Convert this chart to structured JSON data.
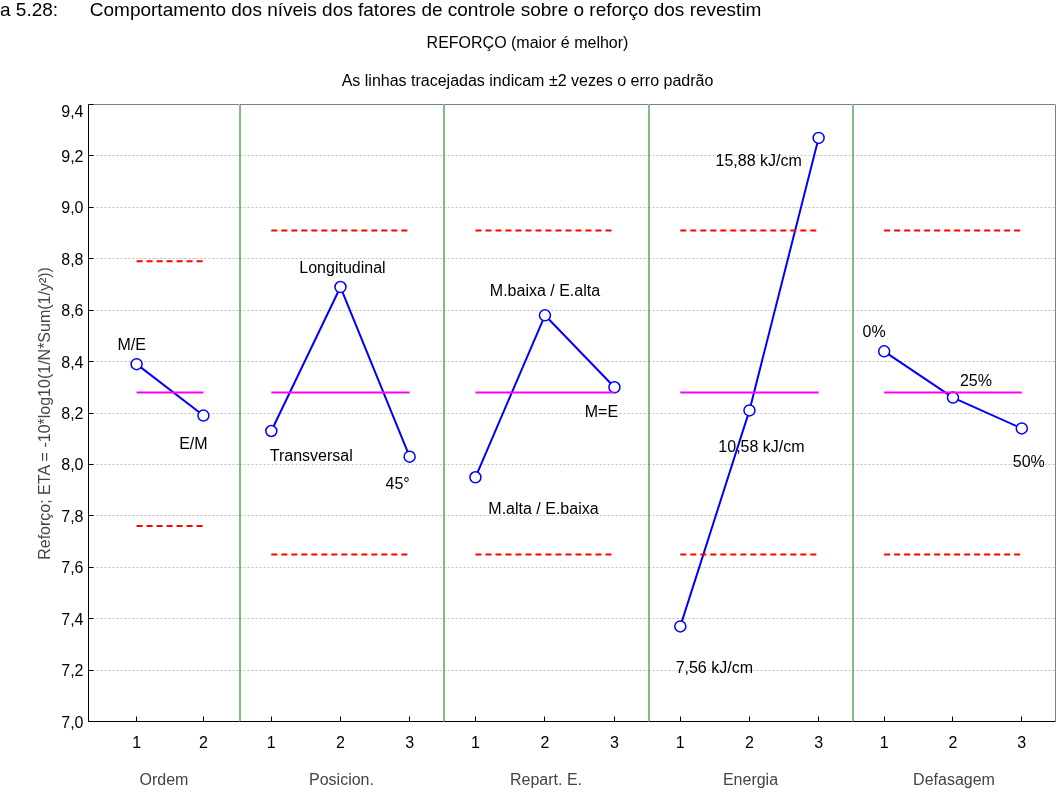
{
  "chart_data": [
    {
      "type": "line",
      "ylabel": "Reforço; ETA = -10*log10(1/N*Sum(1/y²))",
      "xlabel": "Ordem",
      "xlim": [
        0.28,
        2.54
      ],
      "xticks": [
        1,
        2
      ],
      "ylim": [
        7.0,
        9.4
      ],
      "yticks": [
        {
          "value": 7.0,
          "label": "7,0"
        },
        {
          "value": 7.2,
          "label": "7,2"
        },
        {
          "value": 7.4,
          "label": "7,4"
        },
        {
          "value": 7.6,
          "label": "7,6"
        },
        {
          "value": 7.8,
          "label": "7,8"
        },
        {
          "value": 8.0,
          "label": "8,0"
        },
        {
          "value": 8.2,
          "label": "8,2"
        },
        {
          "value": 8.4,
          "label": "8,4"
        },
        {
          "value": 8.6,
          "label": "8,6"
        },
        {
          "value": 8.8,
          "label": "8,8"
        },
        {
          "value": 9.0,
          "label": "9,0"
        },
        {
          "value": 9.2,
          "label": "9,2"
        },
        {
          "value": 9.4,
          "label": "9,4"
        }
      ],
      "grid": "y",
      "series": [
        {
          "color": "#0000ff",
          "marker": "circle",
          "line_style": "solid",
          "x": [
            1,
            2
          ],
          "values": [
            8.39,
            8.19
          ]
        },
        {
          "color": "#ff00ff",
          "marker": "none",
          "line_style": "solid",
          "x": [
            1,
            2
          ],
          "values": [
            8.28,
            8.28
          ]
        },
        {
          "color": "#ff0000",
          "marker": "none",
          "line_style": "dashed",
          "x": [
            1,
            2
          ],
          "values": [
            8.79,
            8.79
          ]
        },
        {
          "color": "#ff0000",
          "marker": "none",
          "line_style": "dashed",
          "x": [
            1,
            2
          ],
          "values": [
            7.76,
            7.76
          ]
        }
      ],
      "annotations": [
        {
          "text": "M/E",
          "x": 1,
          "y": 8.39
        },
        {
          "text": "E/M",
          "x": 2,
          "y": 8.19
        }
      ]
    },
    {
      "type": "line",
      "xlabel": "Posicion.",
      "tick_labels": "x",
      "xlim": [
        0.54,
        3.49
      ],
      "xticks": [
        1,
        2,
        3
      ],
      "ylim": [
        7.0,
        9.4
      ],
      "yticks": [
        7.0,
        7.2,
        7.4,
        7.6,
        7.8,
        8.0,
        8.2,
        8.4,
        8.6,
        8.8,
        9.0,
        9.2,
        9.4
      ],
      "grid": "y",
      "series": [
        {
          "color": "#0000ff",
          "marker": "circle",
          "line_style": "solid",
          "x": [
            1,
            2,
            3
          ],
          "values": [
            8.13,
            8.69,
            8.03
          ]
        },
        {
          "color": "#ff00ff",
          "marker": "none",
          "line_style": "solid",
          "x": [
            1,
            3
          ],
          "values": [
            8.28,
            8.28
          ]
        },
        {
          "color": "#ff0000",
          "marker": "none",
          "line_style": "dashed",
          "x": [
            1,
            3
          ],
          "values": [
            8.91,
            8.91
          ]
        },
        {
          "color": "#ff0000",
          "marker": "none",
          "line_style": "dashed",
          "x": [
            1,
            3
          ],
          "values": [
            7.65,
            7.65
          ]
        }
      ],
      "annotations": [
        "a 5.28:      Comportamento dos níveis dos fatores de controle sobre o reforço dos revestim",
        {
          "text": "Transversal",
          "x": 1,
          "y": 8.13
        },
        {
          "text": "Longitudinal",
          "x": 2,
          "y": 8.69
        },
        {
          "text": "45°",
          "x": 3,
          "y": 8.03
        }
      ]
    },
    {
      "type": "line",
      "title": "REFORÇO (maior é melhor)",
      "subtitle": "As linhas tracejadas indicam ±2 vezes o erro padrão",
      "xlabel": "Repart. E.",
      "tick_labels": "x",
      "xlim": [
        0.54,
        3.49
      ],
      "xticks": [
        1,
        2,
        3
      ],
      "ylim": [
        7.0,
        9.4
      ],
      "yticks": [
        7.0,
        7.2,
        7.4,
        7.6,
        7.8,
        8.0,
        8.2,
        8.4,
        8.6,
        8.8,
        9.0,
        9.2,
        9.4
      ],
      "grid": "y",
      "series": [
        {
          "color": "#0000ff",
          "marker": "circle",
          "line_style": "solid",
          "x": [
            1,
            2,
            3
          ],
          "values": [
            7.95,
            8.58,
            8.3
          ]
        },
        {
          "color": "#ff00ff",
          "marker": "none",
          "line_style": "solid",
          "x": [
            1,
            3
          ],
          "values": [
            8.28,
            8.28
          ]
        },
        {
          "color": "#ff0000",
          "marker": "none",
          "line_style": "dashed",
          "x": [
            1,
            3
          ],
          "values": [
            8.91,
            8.91
          ]
        },
        {
          "color": "#ff0000",
          "marker": "none",
          "line_style": "dashed",
          "x": [
            1,
            3
          ],
          "values": [
            7.65,
            7.65
          ]
        }
      ],
      "annotations": [
        {
          "text": "M.alta / E.baixa",
          "x": 1,
          "y": 7.95
        },
        {
          "text": "M.baixa / E.alta",
          "x": 2,
          "y": 8.58
        },
        {
          "text": "M=E",
          "x": 3,
          "y": 8.3
        }
      ]
    },
    {
      "type": "line",
      "xlabel": "Energia",
      "tick_labels": "x",
      "xlim": [
        0.54,
        3.49
      ],
      "xticks": [
        1,
        2,
        3
      ],
      "ylim": [
        7.0,
        9.4
      ],
      "yticks": [
        7.0,
        7.2,
        7.4,
        7.6,
        7.8,
        8.0,
        8.2,
        8.4,
        8.6,
        8.8,
        9.0,
        9.2,
        9.4
      ],
      "grid": "y",
      "series": [
        {
          "color": "#0000ff",
          "marker": "circle",
          "line_style": "solid",
          "x": [
            1,
            2,
            3
          ],
          "values": [
            7.37,
            8.21,
            9.27
          ]
        },
        {
          "color": "#ff00ff",
          "marker": "none",
          "line_style": "solid",
          "x": [
            1,
            3
          ],
          "values": [
            8.28,
            8.28
          ]
        },
        {
          "color": "#ff0000",
          "marker": "none",
          "line_style": "dashed",
          "x": [
            1,
            3
          ],
          "values": [
            8.91,
            8.91
          ]
        },
        {
          "color": "#ff0000",
          "marker": "none",
          "line_style": "dashed",
          "x": [
            1,
            3
          ],
          "values": [
            7.65,
            7.65
          ]
        }
      ],
      "annotations": [
        {
          "text": "7,56 kJ/cm",
          "x": 1,
          "y": 7.37
        },
        {
          "text": "10,58 kJ/cm",
          "x": 2,
          "y": 8.21
        },
        {
          "text": "15,88 kJ/cm",
          "x": 3,
          "y": 9.27
        }
      ]
    },
    {
      "type": "line",
      "xlabel": "Defasagem",
      "tick_labels": "x",
      "xlim": [
        0.54,
        3.49
      ],
      "xticks": [
        1,
        2,
        3
      ],
      "ylim": [
        7.0,
        9.4
      ],
      "yticks": [
        7.0,
        7.2,
        7.4,
        7.6,
        7.8,
        8.0,
        8.2,
        8.4,
        8.6,
        8.8,
        9.0,
        9.2,
        9.4
      ],
      "grid": "y",
      "series": [
        {
          "color": "#0000ff",
          "marker": "circle",
          "line_style": "solid",
          "x": [
            1,
            2,
            3
          ],
          "values": [
            8.44,
            8.26,
            8.14
          ]
        },
        {
          "color": "#ff00ff",
          "marker": "none",
          "line_style": "solid",
          "x": [
            1,
            3
          ],
          "values": [
            8.28,
            8.28
          ]
        },
        {
          "color": "#ff0000",
          "marker": "none",
          "line_style": "dashed",
          "x": [
            1,
            3
          ],
          "values": [
            8.91,
            8.91
          ]
        },
        {
          "color": "#ff0000",
          "marker": "none",
          "line_style": "dashed",
          "x": [
            1,
            3
          ],
          "values": [
            7.65,
            7.65
          ]
        }
      ],
      "annotations": [
        {
          "text": "0%",
          "x": 1,
          "y": 8.44
        },
        {
          "text": "25%",
          "x": 2,
          "y": 8.26
        },
        {
          "text": "50%",
          "x": 3,
          "y": 8.14
        }
      ]
    }
  ]
}
